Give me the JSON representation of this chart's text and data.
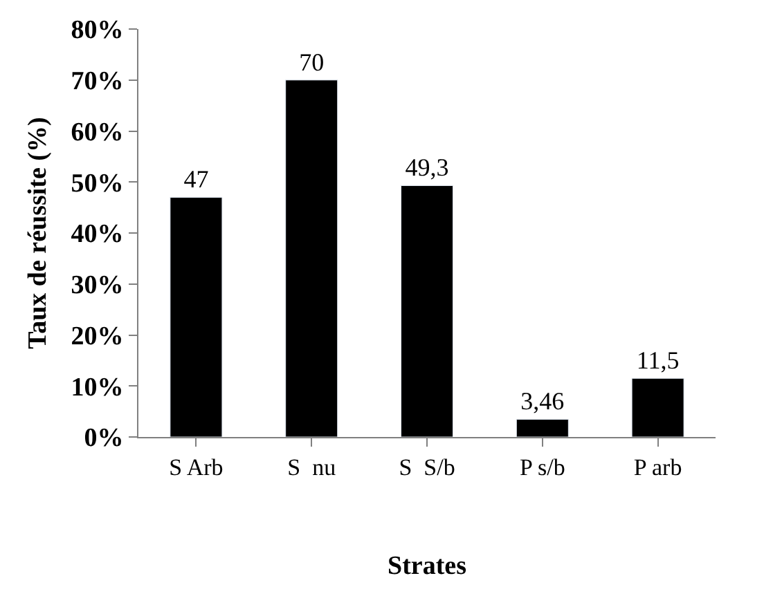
{
  "chart_data": {
    "type": "bar",
    "categories": [
      "S Arb",
      "S  nu",
      "S  S/b",
      "P s/b",
      "P arb"
    ],
    "values": [
      47,
      70,
      49.3,
      3.46,
      11.5
    ],
    "value_labels": [
      "47",
      "70",
      "49,3",
      "3,46",
      "11,5"
    ],
    "color": "#000000",
    "xlabel": "Strates",
    "ylabel": "Taux de réussite (%)",
    "ylim": [
      0,
      80
    ],
    "yticks": [
      {
        "value": 0,
        "label": "0%"
      },
      {
        "value": 10,
        "label": "10%"
      },
      {
        "value": 20,
        "label": "20%"
      },
      {
        "value": 30,
        "label": "30%"
      },
      {
        "value": 40,
        "label": "40%"
      },
      {
        "value": 50,
        "label": "50%"
      },
      {
        "value": 60,
        "label": "60%"
      },
      {
        "value": 70,
        "label": "70%"
      },
      {
        "value": 80,
        "label": "80%"
      }
    ],
    "tick_labels": [
      "x",
      "y"
    ]
  }
}
